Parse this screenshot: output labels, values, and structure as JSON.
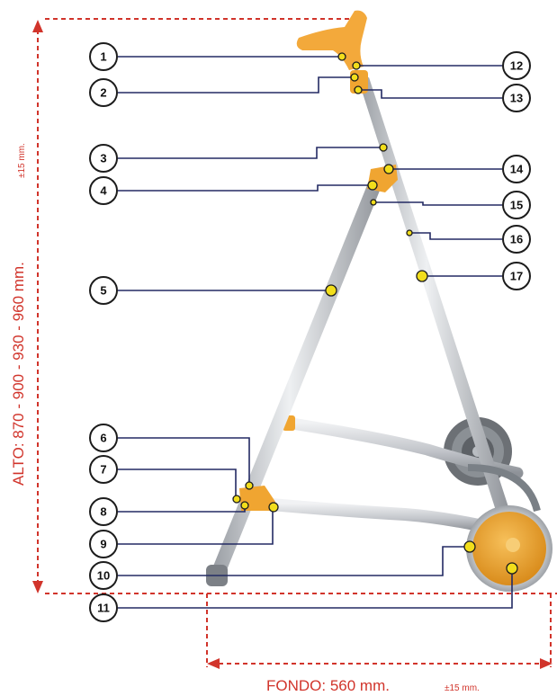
{
  "dimensions": {
    "height_label": "ALTO: 870 - 900 - 930 - 960 mm.",
    "height_tolerance": "±15 mm.",
    "depth_label": "FONDO: 560 mm.",
    "depth_tolerance": "±15 mm."
  },
  "callouts": [
    "1",
    "2",
    "3",
    "4",
    "5",
    "6",
    "7",
    "8",
    "9",
    "10",
    "11",
    "12",
    "13",
    "14",
    "15",
    "16",
    "17"
  ],
  "colors": {
    "dimension_red": "#d1342b",
    "leader_navy": "#232a63",
    "marker_yellow": "#f2de1b",
    "frame_silver": "#c9ccd1",
    "joint_orange": "#f0a531",
    "wheel_gray": "#6f7378"
  }
}
